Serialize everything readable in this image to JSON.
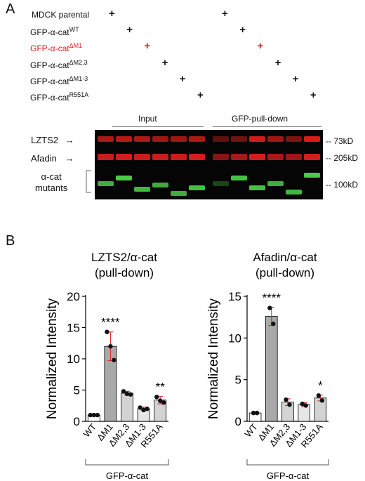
{
  "panel_a": {
    "letter": "A",
    "rows": [
      {
        "base": "MDCK parental",
        "sup": "",
        "red": false
      },
      {
        "base": "GFP-α-cat",
        "sup": "WT",
        "red": false
      },
      {
        "base": "GFP-α-cat",
        "sup": "ΔM1",
        "red": true
      },
      {
        "base": "GFP-α-cat",
        "sup": "ΔM2,3",
        "red": false
      },
      {
        "base": "GFP-α-cat",
        "sup": "ΔM1-3",
        "red": false
      },
      {
        "base": "GFP-α-cat",
        "sup": "R551A",
        "red": false
      }
    ],
    "plus_symbol": "+",
    "group_input": "Input",
    "group_pulldown": "GFP-pull-down",
    "blot_lztS2": "LZTS2",
    "blot_afadin": "Afadin",
    "blot_acat_line1": "α-cat",
    "blot_acat_line2": "mutants",
    "arrow": "→",
    "kd_73": "-- 73kD",
    "kd_205": "-- 205kD",
    "kd_100": "-- 100kD",
    "colors": {
      "red_blot": "#e0201c",
      "green_blot": "#4fd64a",
      "accent_red": "#e11b22"
    }
  },
  "panel_b": {
    "letter": "B",
    "group_label": "GFP-α-cat",
    "chart_data": [
      {
        "type": "bar",
        "title_line1": "LZTS2/α-cat",
        "title_line2": "(pull-down)",
        "ylabel": "Normalized Intensity",
        "ylim": [
          0,
          20
        ],
        "yticks": [
          "0",
          "5",
          "10",
          "15",
          "20"
        ],
        "categories": [
          "WT",
          "ΔM1",
          "ΔM2,3",
          "ΔM1-3",
          "R551A"
        ],
        "values": [
          1.0,
          12.0,
          4.5,
          2.0,
          3.4
        ],
        "errors": [
          0.05,
          2.3,
          0.3,
          0.25,
          0.6
        ],
        "points": [
          [
            1.0,
            1.0,
            1.0
          ],
          [
            14.3,
            12.0,
            9.8
          ],
          [
            4.8,
            4.4,
            4.3
          ],
          [
            2.2,
            1.8,
            2.0
          ],
          [
            3.9,
            3.3,
            3.0
          ]
        ],
        "significance": [
          "",
          "****",
          "",
          "",
          "**"
        ],
        "bar_colors": [
          "#ffffff",
          "#a9a9a9",
          "#d3d3d3",
          "#e6e6e6",
          "#d3d3d3"
        ]
      },
      {
        "type": "bar",
        "title_line1": "Afadin/α-cat",
        "title_line2": "(pull-down)",
        "ylabel": "Normalized Intensity",
        "ylim": [
          0,
          15
        ],
        "yticks": [
          "0",
          "5",
          "10",
          "15"
        ],
        "categories": [
          "WT",
          "ΔM1",
          "ΔM2,3",
          "ΔM1-3",
          "R551A"
        ],
        "values": [
          1.0,
          12.6,
          2.3,
          2.0,
          2.8
        ],
        "errors": [
          0.05,
          1.1,
          0.4,
          0.25,
          0.35
        ],
        "points": [
          [
            1.0,
            1.0
          ],
          [
            13.6,
            11.7
          ],
          [
            2.6,
            2.0
          ],
          [
            2.1,
            1.9
          ],
          [
            3.1,
            2.5
          ]
        ],
        "significance": [
          "",
          "****",
          "",
          "",
          "*"
        ],
        "bar_colors": [
          "#ffffff",
          "#a9a9a9",
          "#d3d3d3",
          "#e6e6e6",
          "#d3d3d3"
        ]
      }
    ]
  }
}
